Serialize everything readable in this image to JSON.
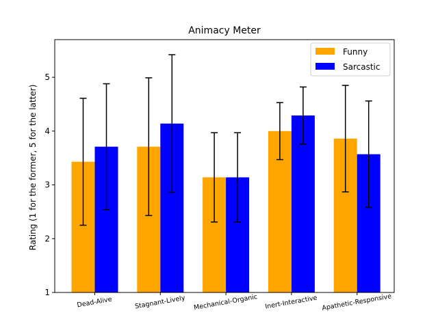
{
  "chart_data": {
    "type": "bar",
    "title": "Animacy Meter",
    "xlabel": "",
    "ylabel": "Rating (1 for the former, 5 for the latter)",
    "ylim": [
      1,
      5.7
    ],
    "yticks": [
      1,
      2,
      3,
      4,
      5
    ],
    "grid": false,
    "legend_position": "top-right",
    "categories": [
      "Dead-Alive",
      "Stagnant-Lively",
      "Mechanical-Organic",
      "Inert-Interactive",
      "Apathetic-Responsive"
    ],
    "series": [
      {
        "name": "Funny",
        "color": "#ffa500",
        "values": [
          3.43,
          3.71,
          3.14,
          4.0,
          3.86
        ],
        "errors": [
          1.18,
          1.28,
          0.83,
          0.53,
          0.99
        ]
      },
      {
        "name": "Sarcastic",
        "color": "#0000ff",
        "values": [
          3.71,
          4.14,
          3.14,
          4.29,
          3.57
        ],
        "errors": [
          1.17,
          1.28,
          0.83,
          0.53,
          0.99
        ]
      }
    ]
  }
}
